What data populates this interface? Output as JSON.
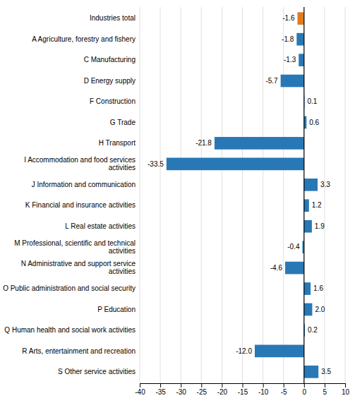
{
  "chart_data": {
    "type": "bar",
    "orientation": "horizontal",
    "categories": [
      "Industries total",
      "A Agriculture, forestry and fishery",
      "C Manufacturing",
      "D Energy supply",
      "F Construction",
      "G Trade",
      "H Transport",
      "I Accommodation and food services\nactivities",
      "J Information and communication",
      "K Financial and insurance activities",
      "L Real estate activities",
      "M Professional, scientific and technical\nactivities",
      "N Administrative and support service\nactivities",
      "O Public administration and social security",
      "P Education",
      "Q Human health and social work activities",
      "R Arts, entertainment and recreation",
      "S Other service activities"
    ],
    "values": [
      -1.6,
      -1.8,
      -1.3,
      -5.7,
      0.1,
      0.6,
      -21.8,
      -33.5,
      3.3,
      1.2,
      1.9,
      -0.4,
      -4.6,
      1.6,
      2.0,
      0.2,
      -12.0,
      3.5
    ],
    "value_labels": [
      "-1.6",
      "-1.8",
      "-1.3",
      "-5.7",
      "0.1",
      "0.6",
      "-21.8",
      "-33.5",
      "3.3",
      "1.2",
      "1.9",
      "-0.4",
      "-4.6",
      "1.6",
      "2.0",
      "0.2",
      "-12.0",
      "3.5"
    ],
    "colors": [
      "#e07b20",
      "#2878b5",
      "#2878b5",
      "#2878b5",
      "#2878b5",
      "#2878b5",
      "#2878b5",
      "#2878b5",
      "#2878b5",
      "#2878b5",
      "#2878b5",
      "#2878b5",
      "#2878b5",
      "#2878b5",
      "#2878b5",
      "#2878b5",
      "#2878b5",
      "#2878b5"
    ],
    "xlim": [
      -40,
      10
    ],
    "xticks": [
      -40,
      -35,
      -30,
      -25,
      -20,
      -15,
      -10,
      -5,
      0,
      5,
      10
    ],
    "grid": true,
    "data_labels": true
  }
}
